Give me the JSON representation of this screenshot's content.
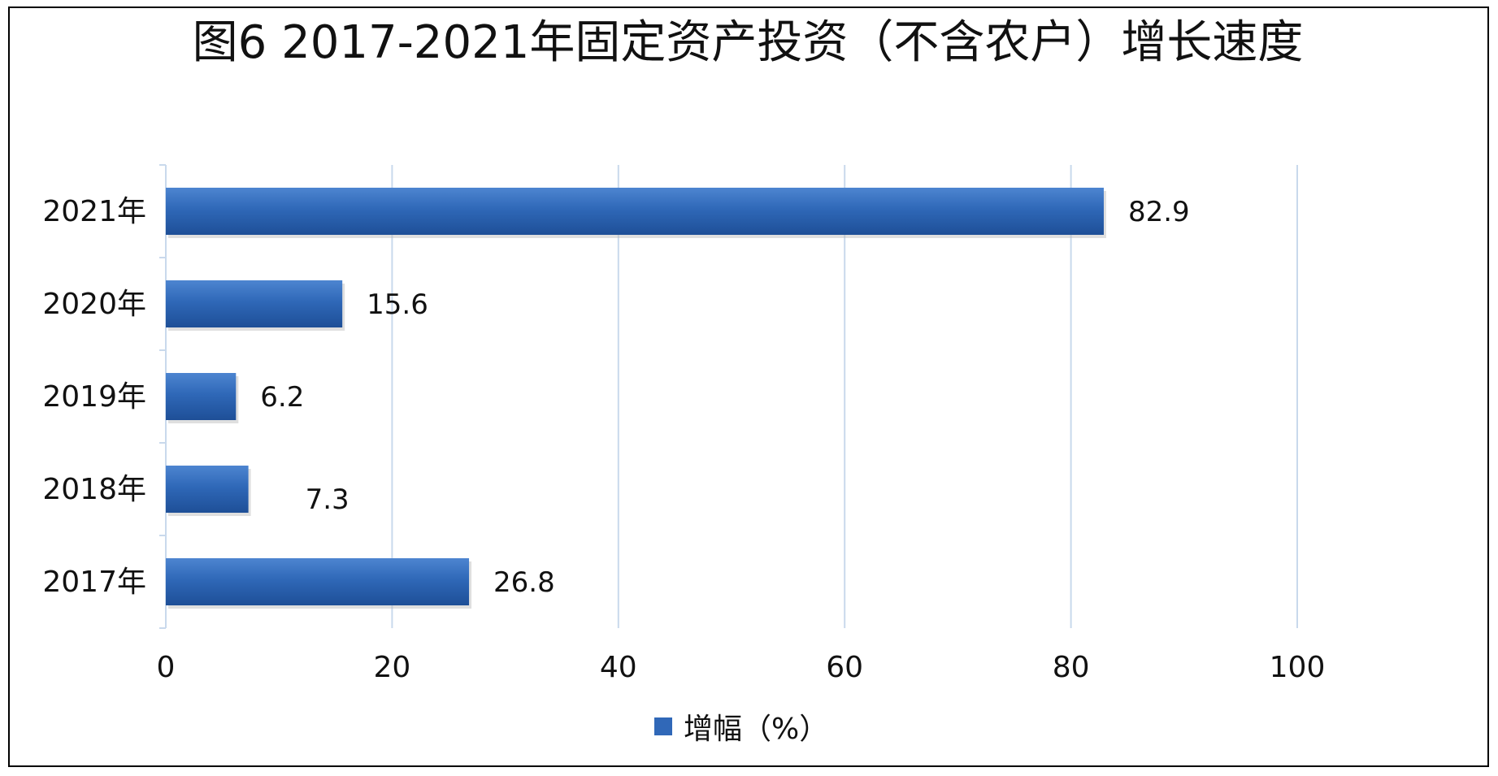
{
  "chart_data": {
    "type": "bar",
    "orientation": "horizontal",
    "title": "图6   2017-2021年固定资产投资（不含农户）增长速度",
    "categories": [
      "2021年",
      "2020年",
      "2019年",
      "2018年",
      "2017年"
    ],
    "series": [
      {
        "name": "增幅（%）",
        "values": [
          82.9,
          15.6,
          6.2,
          7.3,
          26.8
        ],
        "color": "#2e66b6"
      }
    ],
    "data_labels": [
      "82.9",
      "15.6",
      "6.2",
      "7.3",
      "26.8"
    ],
    "xlim": [
      0,
      100
    ],
    "xticks": [
      0,
      20,
      40,
      60,
      80,
      100
    ],
    "grid": true,
    "legend_position": "bottom"
  }
}
